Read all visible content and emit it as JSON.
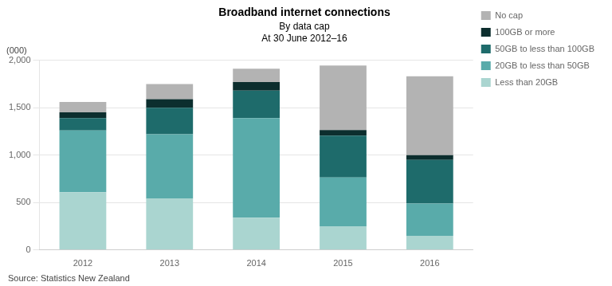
{
  "chart_data": {
    "type": "bar",
    "stacked": true,
    "title": "Broadband internet connections",
    "subtitle": [
      "By data cap",
      "At 30 June 2012–16"
    ],
    "ylabel": "(000)",
    "annotations": [
      "Source: Statistics New Zealand"
    ],
    "categories": [
      "2012",
      "2013",
      "2014",
      "2015",
      "2016"
    ],
    "series": [
      {
        "name": "Less than 20GB",
        "color": "#aad5d0",
        "values": [
          610,
          540,
          340,
          245,
          150
        ]
      },
      {
        "name": "20GB to less than 50GB",
        "color": "#59abaa",
        "values": [
          650,
          680,
          1050,
          520,
          340
        ]
      },
      {
        "name": "50GB to less than 100GB",
        "color": "#1e6b6b",
        "values": [
          130,
          280,
          290,
          440,
          460
        ]
      },
      {
        "name": "100GB or more",
        "color": "#0c2e2e",
        "values": [
          60,
          90,
          90,
          60,
          50
        ]
      },
      {
        "name": "No cap",
        "color": "#b3b3b3",
        "values": [
          110,
          160,
          140,
          680,
          830
        ]
      }
    ],
    "ylim": [
      0,
      2000
    ],
    "yticks": [
      0,
      500,
      {
        "value": 1000,
        "label": "1,000"
      },
      {
        "value": 1500,
        "label": "1,500"
      },
      {
        "value": 2000,
        "label": "2,000"
      }
    ],
    "grid": true,
    "legend": "right"
  }
}
